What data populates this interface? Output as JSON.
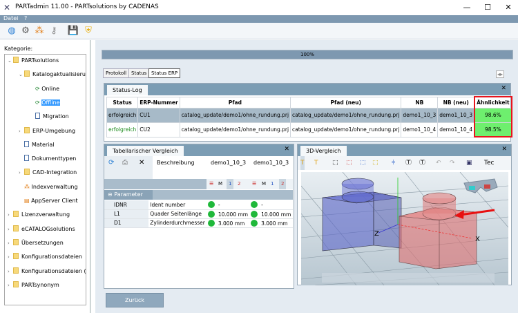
{
  "window": {
    "title": "PARTadmin 11.00 - PARTsolutions by CADENAS"
  },
  "menu": [
    "Datei",
    "?"
  ],
  "toolbar": [
    "globe-sync-icon",
    "tools-icon",
    "hierarchy-icon",
    "keys-icon",
    "save-icon",
    "shield-icon"
  ],
  "sidebar": {
    "label": "Kategorie:",
    "items": [
      {
        "label": "PARTsolutions",
        "level": 0,
        "icon": "folder",
        "expanded": true
      },
      {
        "label": "Katalogaktualisierung",
        "level": 1,
        "icon": "folder",
        "expanded": true
      },
      {
        "label": "Online",
        "level": 2,
        "icon": "sync"
      },
      {
        "label": "Offline",
        "level": 2,
        "icon": "sync",
        "selected": true
      },
      {
        "label": "Migration",
        "level": 2,
        "icon": "doc"
      },
      {
        "label": "ERP-Umgebung",
        "level": 1,
        "icon": "folder"
      },
      {
        "label": "Material",
        "level": 1,
        "icon": "doc"
      },
      {
        "label": "Dokumenttypen",
        "level": 1,
        "icon": "doc"
      },
      {
        "label": "CAD-Integration",
        "level": 1,
        "icon": "folder"
      },
      {
        "label": "Indexverwaltung",
        "level": 1,
        "icon": "hierarchy"
      },
      {
        "label": "AppServer Client",
        "level": 1,
        "icon": "server"
      },
      {
        "label": "Lizenzverwaltung",
        "level": 0,
        "icon": "folder"
      },
      {
        "label": "eCATALOGsolutions",
        "level": 0,
        "icon": "folder"
      },
      {
        "label": "Übersetzungen",
        "level": 0,
        "icon": "folder"
      },
      {
        "label": "Konfigurationsdateien",
        "level": 0,
        "icon": "folder"
      },
      {
        "label": "Konfigurationsdateien (V2",
        "level": 0,
        "icon": "folder"
      },
      {
        "label": "PARTsynonym",
        "level": 0,
        "icon": "folder"
      }
    ]
  },
  "progress": {
    "label": "100%",
    "value": 100
  },
  "tabs": [
    "Protokoll",
    "Status",
    "Status ERP"
  ],
  "status_log": {
    "title": "Status-Log",
    "columns": [
      "Status",
      "ERP-Nummer",
      "Pfad",
      "Pfad (neu)",
      "NB",
      "NB (neu)",
      "Ähnlichkeit"
    ],
    "rows": [
      [
        "erfolgreich",
        "CU1",
        "catalog_update/demo1/ohne_rundung.prj",
        "catalog_update/demo1/ohne_rundung.prj",
        "demo1_10_3",
        "demo1_10_3",
        "98.6%"
      ],
      [
        "erfolgreich",
        "CU2",
        "catalog_update/demo1/ohne_rundung.prj",
        "catalog_update/demo1/ohne_rundung.prj",
        "demo1_10_4",
        "demo1_10_4",
        "98.5%"
      ]
    ],
    "highlight_color": "#e8141c",
    "success_color": "#1a8a1a"
  },
  "compare": {
    "title": "Tabellarischer Vergleich",
    "col_desc": "Beschreibung",
    "col_a": "demo1_10_3",
    "col_b": "demo1_10_3",
    "modes": {
      "m": "M",
      "one": "1",
      "two": "2"
    },
    "group": "Parameter",
    "rows": [
      [
        "IDNR",
        "Ident number",
        "-",
        "-"
      ],
      [
        "L1",
        "Quader Seitenlänge",
        "10.000 mm",
        "10.000 mm"
      ],
      [
        "D1",
        "Zylinderdurchmesser",
        "3.000 mm",
        "3.000 mm"
      ]
    ]
  },
  "view3d": {
    "title": "3D-Vergleich",
    "toolbar_text": "Tec",
    "axis_x": "X",
    "axis_z": "Z"
  },
  "back_button": "Zurück"
}
